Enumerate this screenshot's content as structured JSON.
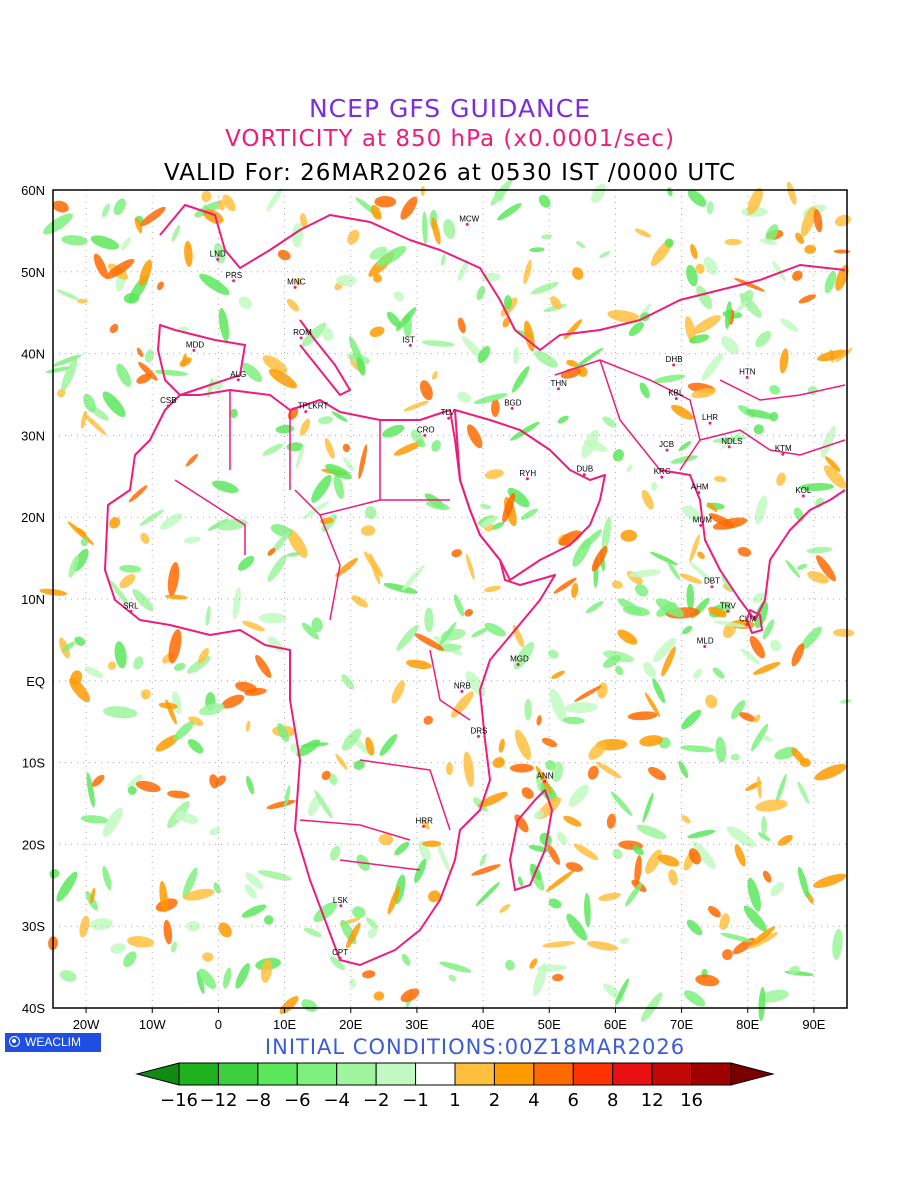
{
  "title": {
    "line1": "NCEP GFS GUIDANCE",
    "line2": "VORTICITY at 850 hPa (x0.0001/sec)",
    "line3": "VALID For: 26MAR2026 at 0530 IST /0000 UTC"
  },
  "initial_conditions": "INITIAL CONDITIONS:00Z18MAR2026",
  "logo_text": "WEACLIM",
  "axes": {
    "lat_labels": [
      "60N",
      "50N",
      "40N",
      "30N",
      "20N",
      "10N",
      "EQ",
      "10S",
      "20S",
      "30S",
      "40S"
    ],
    "lon_labels": [
      "20W",
      "10W",
      "0",
      "10E",
      "20E",
      "30E",
      "40E",
      "50E",
      "60E",
      "70E",
      "80E",
      "90E"
    ],
    "lat_values": [
      60,
      50,
      40,
      30,
      20,
      10,
      0,
      -10,
      -20,
      -30,
      -40
    ],
    "lon_values": [
      -20,
      -10,
      0,
      10,
      20,
      30,
      40,
      50,
      60,
      70,
      80,
      90
    ],
    "lon_range": [
      -25,
      95
    ],
    "lat_range": [
      -40,
      60
    ]
  },
  "cities": [
    {
      "name": "MCW",
      "lon": 37.6,
      "lat": 55.8
    },
    {
      "name": "LND",
      "lon": -0.1,
      "lat": 51.5
    },
    {
      "name": "PRS",
      "lon": 2.3,
      "lat": 48.9
    },
    {
      "name": "MNC",
      "lon": 11.6,
      "lat": 48.1
    },
    {
      "name": "ROM",
      "lon": 12.5,
      "lat": 41.9
    },
    {
      "name": "IST",
      "lon": 29,
      "lat": 41
    },
    {
      "name": "MDD",
      "lon": -3.7,
      "lat": 40.4
    },
    {
      "name": "ALG",
      "lon": 3,
      "lat": 36.8
    },
    {
      "name": "CSB",
      "lon": -7.6,
      "lat": 33.6
    },
    {
      "name": "TPLKRT",
      "lon": 13.2,
      "lat": 32.9
    },
    {
      "name": "TLV",
      "lon": 34.8,
      "lat": 32.1
    },
    {
      "name": "CRO",
      "lon": 31.2,
      "lat": 30
    },
    {
      "name": "BGD",
      "lon": 44.4,
      "lat": 33.3
    },
    {
      "name": "THN",
      "lon": 51.4,
      "lat": 35.7
    },
    {
      "name": "RYH",
      "lon": 46.7,
      "lat": 24.7
    },
    {
      "name": "DUB",
      "lon": 55.3,
      "lat": 25.2
    },
    {
      "name": "DHB",
      "lon": 68.8,
      "lat": 38.6
    },
    {
      "name": "KBL",
      "lon": 69.2,
      "lat": 34.5
    },
    {
      "name": "HTN",
      "lon": 79.9,
      "lat": 37.1
    },
    {
      "name": "LHR",
      "lon": 74.3,
      "lat": 31.5
    },
    {
      "name": "JCB",
      "lon": 67.8,
      "lat": 28.2
    },
    {
      "name": "NDLS",
      "lon": 77.2,
      "lat": 28.6
    },
    {
      "name": "KTM",
      "lon": 85.3,
      "lat": 27.7
    },
    {
      "name": "KRC",
      "lon": 67,
      "lat": 24.9
    },
    {
      "name": "AHM",
      "lon": 72.6,
      "lat": 23
    },
    {
      "name": "KOL",
      "lon": 88.4,
      "lat": 22.6
    },
    {
      "name": "MUM",
      "lon": 72.9,
      "lat": 19
    },
    {
      "name": "DBT",
      "lon": 74.6,
      "lat": 11.5
    },
    {
      "name": "TRV",
      "lon": 77,
      "lat": 8.5
    },
    {
      "name": "CLM",
      "lon": 79.9,
      "lat": 6.9
    },
    {
      "name": "MLD",
      "lon": 73.5,
      "lat": 4.2
    },
    {
      "name": "SRL",
      "lon": -13.2,
      "lat": 8.5
    },
    {
      "name": "MGD",
      "lon": 45.3,
      "lat": 2
    },
    {
      "name": "NRB",
      "lon": 36.8,
      "lat": -1.3
    },
    {
      "name": "DRS",
      "lon": 39.3,
      "lat": -6.8
    },
    {
      "name": "ANN",
      "lon": 49.3,
      "lat": -12.3
    },
    {
      "name": "HRR",
      "lon": 31,
      "lat": -17.8
    },
    {
      "name": "LSK",
      "lon": 18.5,
      "lat": -27.5
    },
    {
      "name": "CPT",
      "lon": 18.4,
      "lat": -33.9
    }
  ],
  "colorbar": {
    "labels": [
      "−16",
      "−12",
      "−8",
      "−6",
      "−4",
      "−2",
      "−1",
      "1",
      "2",
      "4",
      "6",
      "8",
      "12",
      "16"
    ],
    "colors": [
      "#118a11",
      "#1fb21f",
      "#3dcf3d",
      "#5ce85c",
      "#7df07d",
      "#9ef59e",
      "#c2f9c2",
      "#ffffff",
      "#ffc040",
      "#ff9b00",
      "#ff6a00",
      "#ff3300",
      "#e81010",
      "#c40808",
      "#a00000",
      "#7a0000"
    ]
  },
  "colors": {
    "boundary": "#ee1c7a",
    "grid": "#aaaaaa"
  }
}
